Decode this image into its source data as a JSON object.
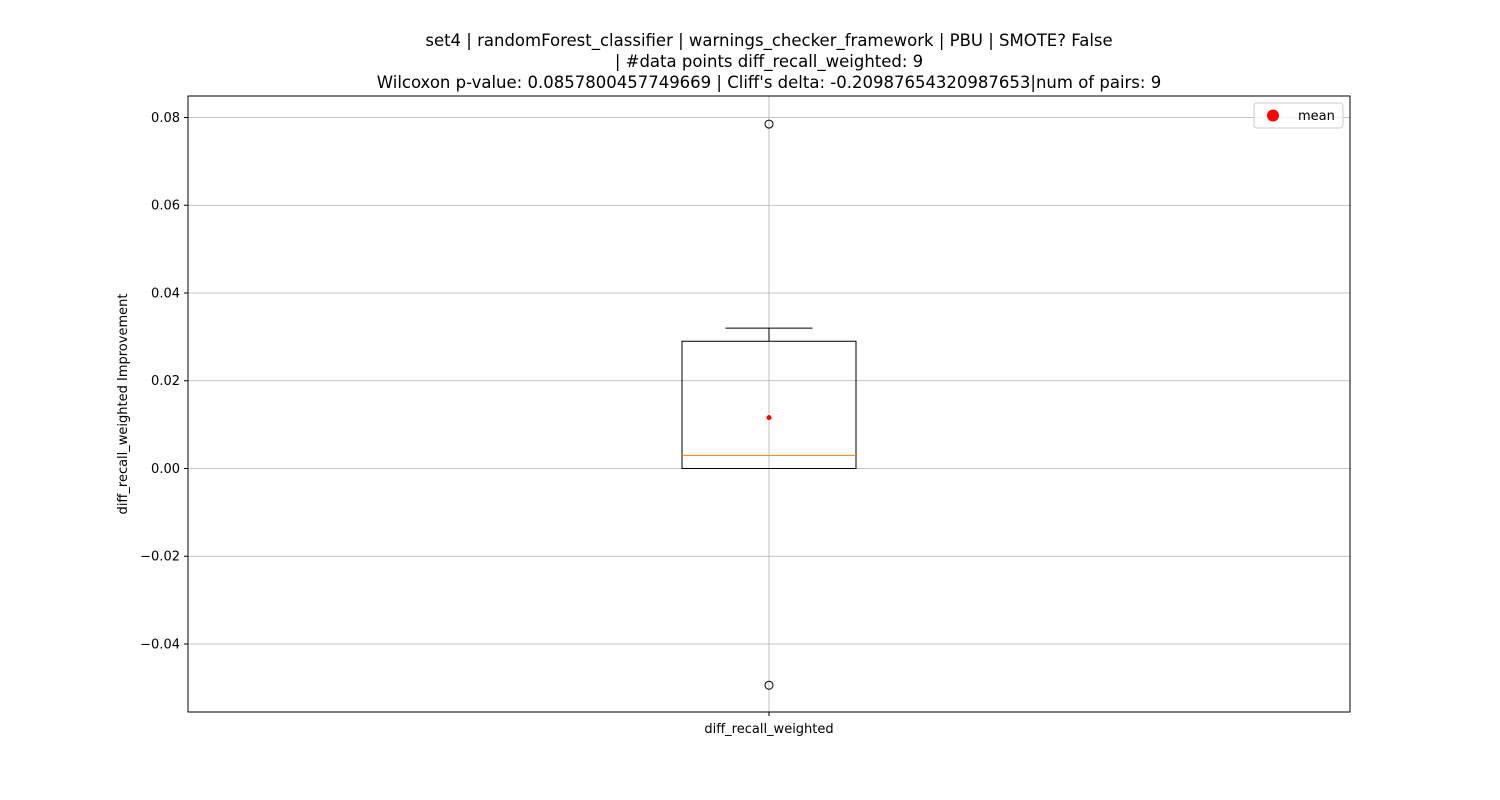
{
  "chart_data": {
    "type": "box",
    "title_lines": [
      "set4 | randomForest_classifier | warnings_checker_framework | PBU | SMOTE? False",
      "| #data points diff_recall_weighted: 9",
      "Wilcoxon p-value: 0.0857800457749669 | Cliff's delta: -0.20987654320987653|num of pairs: 9"
    ],
    "xlabel": "",
    "ylabel": "diff_recall_weighted Improvement",
    "categories": [
      "diff_recall_weighted"
    ],
    "ylim": [
      -0.0555,
      0.0849
    ],
    "yticks": [
      -0.04,
      -0.02,
      0.0,
      0.02,
      0.04,
      0.06,
      0.08
    ],
    "ytick_labels": [
      "−0.04",
      "−0.02",
      "0.00",
      "0.02",
      "0.04",
      "0.06",
      "0.08"
    ],
    "grid": true,
    "box": {
      "q1": 0.0,
      "median": 0.003,
      "q3": 0.029,
      "whisker_low": 0.0,
      "whisker_high": 0.032,
      "mean": 0.0116,
      "outliers": [
        0.0785,
        -0.0494
      ]
    },
    "legend": {
      "position": "top-right",
      "entries": [
        {
          "label": "mean",
          "color": "#ff0000"
        }
      ]
    },
    "colors": {
      "median": "#ff7f0e",
      "mean": "#ff0000",
      "box": "#000000",
      "grid": "#b0b0b0"
    }
  }
}
